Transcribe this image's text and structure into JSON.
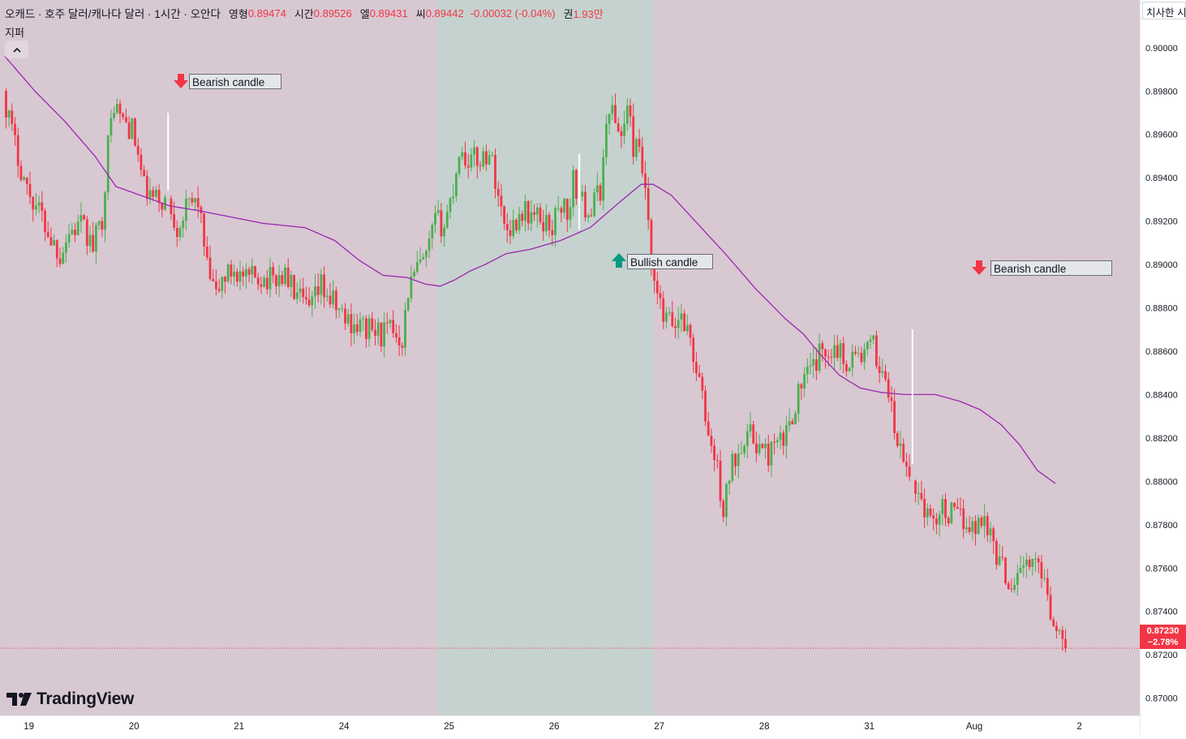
{
  "header": {
    "symbol": "오캐드 · 호주 달러/캐나다 달러 · 1시간 · 오안다",
    "open_label": "영형",
    "open_value": "0.89474",
    "high_label": "시간",
    "high_value": "0.89526",
    "low_label": "엘",
    "low_value": "0.89431",
    "close_label": "씨",
    "close_value": "0.89442",
    "change": "-0.00032 (-0.04%)",
    "volume_label": "권",
    "volume_value": "1.93만"
  },
  "indicators_label": "지퍼",
  "top_right_button": "치사한 시",
  "annotations": [
    {
      "label": "Bearish candle",
      "direction": "down"
    },
    {
      "label": "Bullish candle",
      "direction": "up"
    },
    {
      "label": "Bearish candle",
      "direction": "down"
    }
  ],
  "last_price": {
    "price": "0.87230",
    "change": "−2.78%"
  },
  "logo_text": "TradingView",
  "colors": {
    "background": "#d8c8d2",
    "session_highlight": "#c6d2cf",
    "bullish": "#4caf50",
    "bearish": "#f23645",
    "moving_average": "#9c27b0",
    "signal_candle": "#ffffff",
    "arrow_up": "#089981",
    "arrow_down": "#f23645"
  },
  "chart_data": {
    "type": "candlestick",
    "timeframe": "1h",
    "overlay": "moving average",
    "y_axis": {
      "ticks": [
        "0.90000",
        "0.89800",
        "0.89600",
        "0.89400",
        "0.89200",
        "0.89000",
        "0.88800",
        "0.88600",
        "0.88400",
        "0.88200",
        "0.88000",
        "0.87800",
        "0.87600",
        "0.87400",
        "0.87200",
        "0.87000"
      ],
      "range": [
        0.8692,
        0.9022
      ]
    },
    "x_axis": {
      "ticks": [
        "19",
        "20",
        "21",
        "24",
        "25",
        "26",
        "27",
        "28",
        "31",
        "Aug",
        "2"
      ]
    },
    "current_price": 0.8723,
    "price_path": [
      [
        0,
        0.898
      ],
      [
        4,
        0.8955
      ],
      [
        8,
        0.8935
      ],
      [
        12,
        0.8925
      ],
      [
        16,
        0.8912
      ],
      [
        19,
        0.8905
      ],
      [
        22,
        0.8915
      ],
      [
        26,
        0.8918
      ],
      [
        30,
        0.8908
      ],
      [
        33,
        0.8922
      ],
      [
        35,
        0.8955
      ],
      [
        37,
        0.8975
      ],
      [
        39,
        0.8968
      ],
      [
        41,
        0.8965
      ],
      [
        43,
        0.8962
      ],
      [
        45,
        0.895
      ],
      [
        47,
        0.8935
      ],
      [
        50,
        0.893
      ],
      [
        55,
        0.8929
      ],
      [
        58,
        0.8918
      ],
      [
        61,
        0.8925
      ],
      [
        63,
        0.8928
      ],
      [
        65,
        0.893
      ],
      [
        68,
        0.8898
      ],
      [
        71,
        0.8885
      ],
      [
        73,
        0.8893
      ],
      [
        77,
        0.8898
      ],
      [
        81,
        0.8892
      ],
      [
        85,
        0.8895
      ],
      [
        89,
        0.8893
      ],
      [
        94,
        0.8895
      ],
      [
        98,
        0.8885
      ],
      [
        102,
        0.8878
      ],
      [
        106,
        0.889
      ],
      [
        110,
        0.8882
      ],
      [
        114,
        0.8875
      ],
      [
        118,
        0.8872
      ],
      [
        122,
        0.887
      ],
      [
        126,
        0.8868
      ],
      [
        130,
        0.887
      ],
      [
        133,
        0.8866
      ],
      [
        135,
        0.8888
      ],
      [
        138,
        0.8898
      ],
      [
        141,
        0.8902
      ],
      [
        144,
        0.892
      ],
      [
        147,
        0.8918
      ],
      [
        150,
        0.8935
      ],
      [
        152,
        0.8953
      ],
      [
        154,
        0.8949
      ],
      [
        158,
        0.8948
      ],
      [
        162,
        0.8952
      ],
      [
        164,
        0.894
      ],
      [
        167,
        0.8918
      ],
      [
        170,
        0.8918
      ],
      [
        173,
        0.8925
      ],
      [
        177,
        0.8922
      ],
      [
        180,
        0.892
      ],
      [
        183,
        0.8918
      ],
      [
        186,
        0.8928
      ],
      [
        189,
        0.8923
      ],
      [
        190,
        0.8938
      ],
      [
        193,
        0.8928
      ],
      [
        196,
        0.8925
      ],
      [
        199,
        0.8935
      ],
      [
        202,
        0.8975
      ],
      [
        204,
        0.8965
      ],
      [
        206,
        0.896
      ],
      [
        208,
        0.8972
      ],
      [
        210,
        0.8955
      ],
      [
        212,
        0.895
      ],
      [
        214,
        0.8935
      ],
      [
        216,
        0.8895
      ],
      [
        218,
        0.8885
      ],
      [
        220,
        0.8875
      ],
      [
        224,
        0.8872
      ],
      [
        226,
        0.8878
      ],
      [
        229,
        0.8865
      ],
      [
        232,
        0.8845
      ],
      [
        235,
        0.8822
      ],
      [
        238,
        0.8805
      ],
      [
        240,
        0.8785
      ],
      [
        242,
        0.8803
      ],
      [
        244,
        0.8812
      ],
      [
        247,
        0.8822
      ],
      [
        250,
        0.882
      ],
      [
        254,
        0.8812
      ],
      [
        257,
        0.8815
      ],
      [
        260,
        0.8818
      ],
      [
        263,
        0.8832
      ],
      [
        266,
        0.8845
      ],
      [
        269,
        0.885
      ],
      [
        272,
        0.8858
      ],
      [
        275,
        0.8862
      ],
      [
        278,
        0.8862
      ],
      [
        280,
        0.8855
      ],
      [
        283,
        0.8858
      ],
      [
        286,
        0.8858
      ],
      [
        290,
        0.8862
      ],
      [
        292,
        0.8852
      ],
      [
        294,
        0.885
      ],
      [
        297,
        0.8823
      ],
      [
        300,
        0.8808
      ],
      [
        303,
        0.88
      ],
      [
        306,
        0.8792
      ],
      [
        309,
        0.878
      ],
      [
        312,
        0.8788
      ],
      [
        315,
        0.8785
      ],
      [
        318,
        0.8783
      ],
      [
        321,
        0.8782
      ],
      [
        324,
        0.8778
      ],
      [
        327,
        0.8785
      ],
      [
        330,
        0.877
      ],
      [
        333,
        0.876
      ],
      [
        336,
        0.8752
      ],
      [
        339,
        0.8762
      ],
      [
        342,
        0.876
      ],
      [
        345,
        0.8762
      ],
      [
        347,
        0.8758
      ],
      [
        349,
        0.874
      ],
      [
        351,
        0.8735
      ],
      [
        353,
        0.8723
      ]
    ],
    "moving_average_path": [
      [
        0,
        0.8996
      ],
      [
        10,
        0.898
      ],
      [
        20,
        0.8966
      ],
      [
        30,
        0.895
      ],
      [
        37,
        0.8936
      ],
      [
        45,
        0.8932
      ],
      [
        55,
        0.8927
      ],
      [
        64,
        0.8925
      ],
      [
        75,
        0.8922
      ],
      [
        86,
        0.8919
      ],
      [
        100,
        0.8917
      ],
      [
        110,
        0.8911
      ],
      [
        118,
        0.8902
      ],
      [
        126,
        0.8895
      ],
      [
        134,
        0.8894
      ],
      [
        140,
        0.8891
      ],
      [
        145,
        0.889
      ],
      [
        150,
        0.8893
      ],
      [
        155,
        0.8897
      ],
      [
        160,
        0.89
      ],
      [
        167,
        0.8905
      ],
      [
        175,
        0.8907
      ],
      [
        185,
        0.8911
      ],
      [
        195,
        0.8917
      ],
      [
        205,
        0.8929
      ],
      [
        212,
        0.8937
      ],
      [
        216,
        0.8937
      ],
      [
        222,
        0.8932
      ],
      [
        230,
        0.892
      ],
      [
        240,
        0.8905
      ],
      [
        250,
        0.8889
      ],
      [
        260,
        0.8875
      ],
      [
        266,
        0.8868
      ],
      [
        272,
        0.8858
      ],
      [
        278,
        0.8849
      ],
      [
        285,
        0.8843
      ],
      [
        292,
        0.8841
      ],
      [
        300,
        0.884
      ],
      [
        310,
        0.884
      ],
      [
        318,
        0.8837
      ],
      [
        325,
        0.8833
      ],
      [
        332,
        0.8826
      ],
      [
        338,
        0.8817
      ],
      [
        344,
        0.8805
      ],
      [
        350,
        0.8799
      ]
    ],
    "signal_candles": [
      {
        "index": 54,
        "type": "bearish",
        "high": 0.897,
        "low": 0.8934
      },
      {
        "index": 191,
        "type": "bullish",
        "high": 0.8951,
        "low": 0.8916
      },
      {
        "index": 302,
        "type": "bearish",
        "high": 0.887,
        "low": 0.8808
      }
    ],
    "highlighted_session": {
      "from_index": 144,
      "to_index": 216
    }
  }
}
